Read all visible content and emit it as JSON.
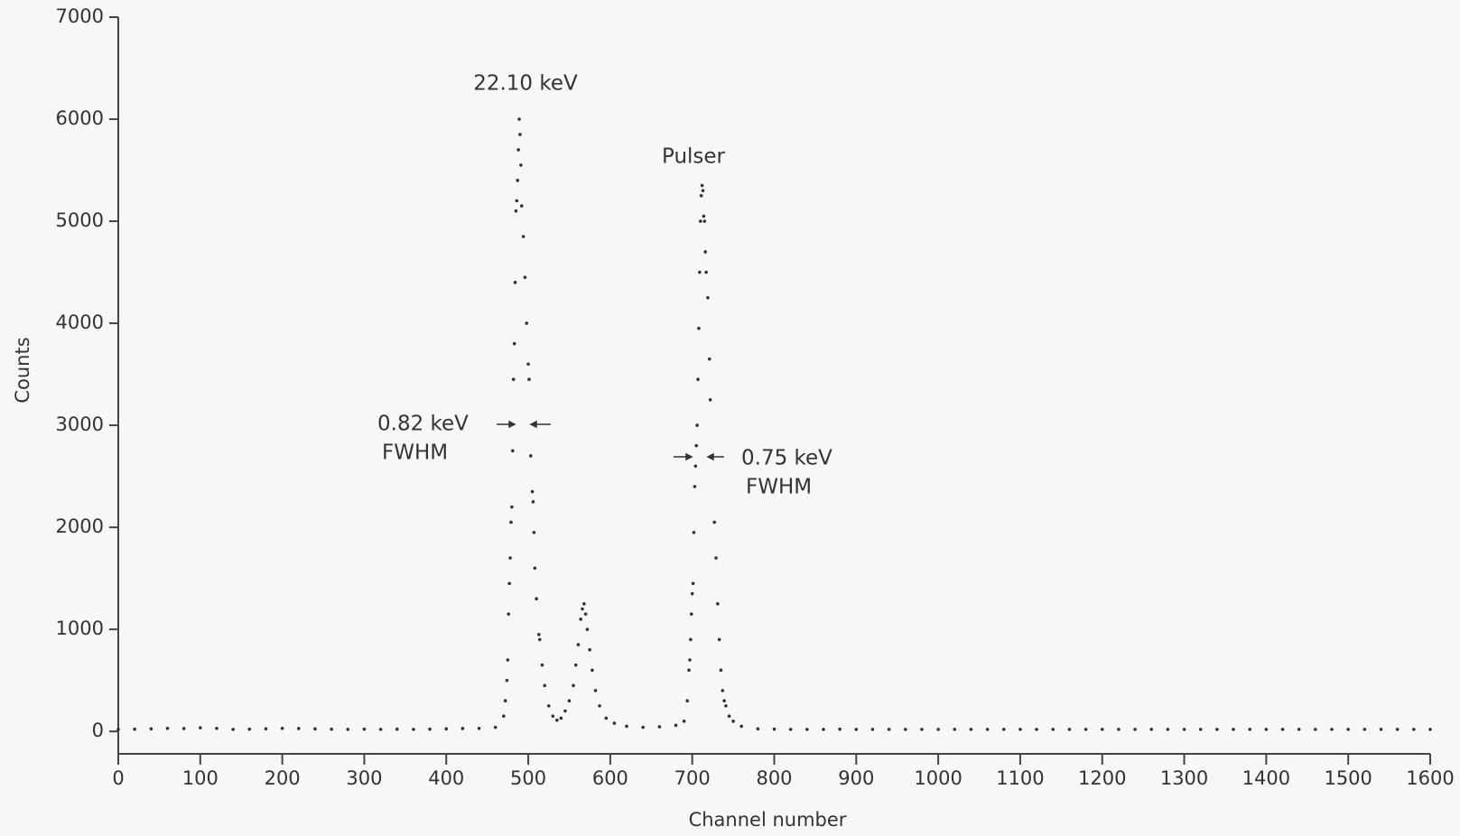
{
  "chart_data": {
    "type": "scatter",
    "xlabel": "Channel number",
    "ylabel": "Counts",
    "xlim": [
      0,
      1600
    ],
    "xticks": [
      0,
      100,
      200,
      300,
      400,
      500,
      600,
      700,
      800,
      900,
      1000,
      1100,
      1200,
      1300,
      1400,
      1500,
      1600
    ],
    "ylim": [
      -220,
      7000
    ],
    "yticks": [
      0,
      1000,
      2000,
      3000,
      4000,
      5000,
      6000,
      7000
    ],
    "color": "#333333",
    "x": [
      0,
      20,
      40,
      60,
      80,
      100,
      120,
      140,
      160,
      180,
      200,
      220,
      240,
      260,
      280,
      300,
      320,
      340,
      360,
      380,
      400,
      420,
      440,
      460,
      470,
      472,
      474,
      475,
      476,
      477,
      478,
      479,
      480,
      481,
      482,
      483,
      484,
      485,
      486,
      487,
      488,
      489,
      490,
      491,
      492,
      494,
      496,
      498,
      500,
      501,
      503,
      505,
      506,
      507,
      508,
      510,
      513,
      514,
      517,
      520,
      525,
      530,
      535,
      540,
      545,
      550,
      555,
      558,
      561,
      564,
      566,
      568,
      570,
      572,
      575,
      578,
      582,
      587,
      595,
      605,
      620,
      640,
      660,
      680,
      690,
      694,
      696,
      697,
      698,
      699,
      700,
      701,
      702,
      703,
      704,
      705,
      706,
      707,
      708,
      709,
      710,
      711,
      712,
      713,
      714,
      715,
      716,
      717,
      719,
      721,
      722,
      724,
      727,
      729,
      731,
      733,
      735,
      737,
      739,
      741,
      745,
      750,
      760,
      780,
      800,
      820,
      840,
      860,
      880,
      900,
      920,
      940,
      960,
      980,
      1000,
      1020,
      1040,
      1060,
      1080,
      1100,
      1120,
      1140,
      1160,
      1180,
      1200,
      1220,
      1240,
      1260,
      1280,
      1300,
      1320,
      1340,
      1360,
      1380,
      1400,
      1420,
      1440,
      1460,
      1480,
      1500,
      1520,
      1540,
      1560,
      1580,
      1600
    ],
    "values": [
      20,
      22,
      25,
      30,
      28,
      35,
      30,
      20,
      22,
      25,
      30,
      28,
      25,
      22,
      20,
      22,
      20,
      22,
      20,
      22,
      25,
      28,
      30,
      40,
      150,
      300,
      500,
      700,
      1150,
      1450,
      1700,
      2050,
      2200,
      2750,
      3450,
      3800,
      4400,
      5100,
      5200,
      5400,
      5700,
      6000,
      5850,
      5550,
      5150,
      4850,
      4450,
      4000,
      3600,
      3450,
      2700,
      2350,
      2250,
      1950,
      1600,
      1300,
      950,
      900,
      650,
      450,
      250,
      150,
      110,
      130,
      200,
      300,
      450,
      650,
      850,
      1100,
      1200,
      1250,
      1150,
      1000,
      800,
      600,
      400,
      250,
      130,
      80,
      50,
      40,
      45,
      60,
      100,
      300,
      600,
      700,
      900,
      1150,
      1350,
      1450,
      1950,
      2400,
      2600,
      2800,
      3000,
      3450,
      3950,
      4500,
      5000,
      5250,
      5350,
      5300,
      5050,
      5000,
      4700,
      4500,
      4250,
      3650,
      3250,
      2700,
      2050,
      1700,
      1250,
      900,
      600,
      400,
      300,
      250,
      150,
      100,
      50,
      25,
      22,
      20,
      20,
      20,
      22,
      20,
      20,
      20,
      20,
      20,
      20,
      20,
      20,
      20,
      20,
      20,
      20,
      20,
      20,
      20,
      20,
      20,
      20,
      20,
      20,
      20,
      20,
      20,
      20,
      20,
      20,
      20,
      20,
      20,
      20,
      20,
      20,
      20,
      20,
      20,
      20
    ],
    "annotations": [
      "22.10 keV",
      "Pulser",
      "0.82 keV",
      "FWHM",
      "0.75 keV",
      "FWHM"
    ]
  }
}
